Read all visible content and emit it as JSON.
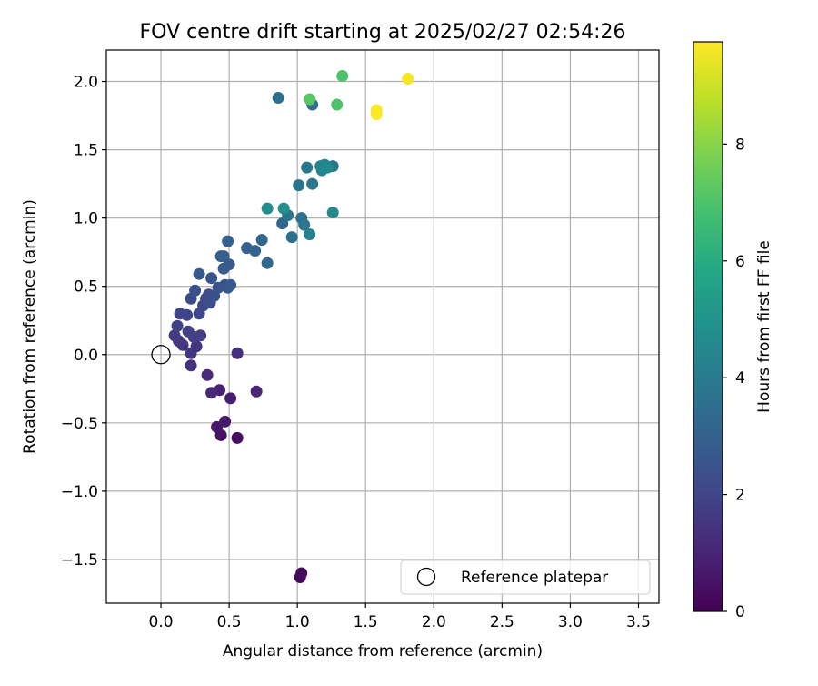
{
  "chart_data": {
    "type": "scatter",
    "title": "FOV centre drift starting at 2025/02/27 02:54:26",
    "xlabel": "Angular distance from reference (arcmin)",
    "ylabel": "Rotation from reference (arcmin)",
    "xlim": [
      -0.4,
      3.65
    ],
    "ylim": [
      -1.82,
      2.23
    ],
    "xticks": [
      0.0,
      0.5,
      1.0,
      1.5,
      2.0,
      2.5,
      3.0,
      3.5
    ],
    "xtick_labels": [
      "0.0",
      "0.5",
      "1.0",
      "1.5",
      "2.0",
      "2.5",
      "3.0",
      "3.5"
    ],
    "yticks": [
      -1.5,
      -1.0,
      -0.5,
      0.0,
      0.5,
      1.0,
      1.5,
      2.0
    ],
    "ytick_labels": [
      "−1.5",
      "−1.0",
      "−0.5",
      "0.0",
      "0.5",
      "1.0",
      "1.5",
      "2.0"
    ],
    "grid": true,
    "colormap": "viridis",
    "colorbar": {
      "label": "Hours from first FF file",
      "range": [
        0,
        9.75
      ],
      "ticks": [
        0,
        2,
        4,
        6,
        8
      ],
      "tick_labels": [
        "0",
        "2",
        "4",
        "6",
        "8"
      ]
    },
    "legend": {
      "position": "lower-right",
      "entries": [
        {
          "label": "Reference platepar",
          "marker": "open-circle"
        }
      ]
    },
    "reference_point": {
      "x": 0.0,
      "y": 0.0
    },
    "points": [
      {
        "x": 1.02,
        "y": -1.63,
        "c": 0.2
      },
      {
        "x": 1.03,
        "y": -1.6,
        "c": 0.3
      },
      {
        "x": 0.56,
        "y": -0.61,
        "c": 0.4
      },
      {
        "x": 0.44,
        "y": -0.59,
        "c": 0.5
      },
      {
        "x": 0.41,
        "y": -0.53,
        "c": 0.6
      },
      {
        "x": 0.47,
        "y": -0.49,
        "c": 0.7
      },
      {
        "x": 0.51,
        "y": -0.32,
        "c": 0.8
      },
      {
        "x": 0.43,
        "y": -0.26,
        "c": 0.9
      },
      {
        "x": 0.7,
        "y": -0.27,
        "c": 1.0
      },
      {
        "x": 0.37,
        "y": -0.28,
        "c": 1.1
      },
      {
        "x": 0.34,
        "y": -0.15,
        "c": 1.2
      },
      {
        "x": 0.56,
        "y": 0.01,
        "c": 1.3
      },
      {
        "x": 0.22,
        "y": -0.08,
        "c": 1.4
      },
      {
        "x": 0.22,
        "y": 0.01,
        "c": 1.5
      },
      {
        "x": 0.26,
        "y": 0.06,
        "c": 1.5
      },
      {
        "x": 0.16,
        "y": 0.07,
        "c": 1.6
      },
      {
        "x": 0.13,
        "y": 0.1,
        "c": 1.6
      },
      {
        "x": 0.1,
        "y": 0.14,
        "c": 1.7
      },
      {
        "x": 0.29,
        "y": 0.14,
        "c": 1.8
      },
      {
        "x": 0.24,
        "y": 0.13,
        "c": 1.8
      },
      {
        "x": 0.2,
        "y": 0.17,
        "c": 1.9
      },
      {
        "x": 0.12,
        "y": 0.21,
        "c": 1.9
      },
      {
        "x": 0.14,
        "y": 0.3,
        "c": 2.0
      },
      {
        "x": 0.19,
        "y": 0.29,
        "c": 2.0
      },
      {
        "x": 0.28,
        "y": 0.3,
        "c": 2.1
      },
      {
        "x": 0.31,
        "y": 0.36,
        "c": 2.1
      },
      {
        "x": 0.33,
        "y": 0.41,
        "c": 2.2
      },
      {
        "x": 0.22,
        "y": 0.41,
        "c": 2.2
      },
      {
        "x": 0.36,
        "y": 0.38,
        "c": 2.3
      },
      {
        "x": 0.35,
        "y": 0.44,
        "c": 2.3
      },
      {
        "x": 0.39,
        "y": 0.43,
        "c": 2.4
      },
      {
        "x": 0.25,
        "y": 0.47,
        "c": 2.4
      },
      {
        "x": 0.42,
        "y": 0.49,
        "c": 2.5
      },
      {
        "x": 0.37,
        "y": 0.56,
        "c": 2.5
      },
      {
        "x": 0.47,
        "y": 0.51,
        "c": 2.6
      },
      {
        "x": 0.49,
        "y": 0.49,
        "c": 2.6
      },
      {
        "x": 0.51,
        "y": 0.51,
        "c": 2.7
      },
      {
        "x": 0.28,
        "y": 0.59,
        "c": 2.7
      },
      {
        "x": 0.46,
        "y": 0.63,
        "c": 2.8
      },
      {
        "x": 0.5,
        "y": 0.66,
        "c": 2.8
      },
      {
        "x": 0.44,
        "y": 0.72,
        "c": 2.9
      },
      {
        "x": 0.46,
        "y": 0.72,
        "c": 2.9
      },
      {
        "x": 0.49,
        "y": 0.83,
        "c": 3.0
      },
      {
        "x": 0.63,
        "y": 0.78,
        "c": 3.0
      },
      {
        "x": 0.69,
        "y": 0.76,
        "c": 3.1
      },
      {
        "x": 0.74,
        "y": 0.84,
        "c": 3.2
      },
      {
        "x": 0.78,
        "y": 0.67,
        "c": 3.3
      },
      {
        "x": 0.89,
        "y": 0.96,
        "c": 3.2
      },
      {
        "x": 0.96,
        "y": 0.86,
        "c": 3.6
      },
      {
        "x": 0.93,
        "y": 1.02,
        "c": 3.7
      },
      {
        "x": 1.03,
        "y": 1.0,
        "c": 3.7
      },
      {
        "x": 1.05,
        "y": 0.95,
        "c": 3.8
      },
      {
        "x": 1.09,
        "y": 0.88,
        "c": 4.3
      },
      {
        "x": 1.01,
        "y": 1.24,
        "c": 3.7
      },
      {
        "x": 1.11,
        "y": 1.25,
        "c": 3.8
      },
      {
        "x": 1.07,
        "y": 1.37,
        "c": 3.9
      },
      {
        "x": 1.26,
        "y": 1.38,
        "c": 3.9
      },
      {
        "x": 1.17,
        "y": 1.38,
        "c": 4.3
      },
      {
        "x": 1.2,
        "y": 1.39,
        "c": 4.4
      },
      {
        "x": 1.18,
        "y": 1.35,
        "c": 4.5
      },
      {
        "x": 1.22,
        "y": 1.37,
        "c": 4.5
      },
      {
        "x": 1.26,
        "y": 1.04,
        "c": 4.6
      },
      {
        "x": 0.78,
        "y": 1.07,
        "c": 4.7
      },
      {
        "x": 0.9,
        "y": 1.07,
        "c": 4.8
      },
      {
        "x": 0.86,
        "y": 1.88,
        "c": 3.6
      },
      {
        "x": 1.11,
        "y": 1.83,
        "c": 3.5
      },
      {
        "x": 1.09,
        "y": 1.87,
        "c": 7.2
      },
      {
        "x": 1.29,
        "y": 1.83,
        "c": 7.0
      },
      {
        "x": 1.33,
        "y": 2.04,
        "c": 7.0
      },
      {
        "x": 1.58,
        "y": 1.76,
        "c": 9.7
      },
      {
        "x": 1.58,
        "y": 1.79,
        "c": 9.7
      },
      {
        "x": 1.81,
        "y": 2.02,
        "c": 9.6
      }
    ]
  }
}
